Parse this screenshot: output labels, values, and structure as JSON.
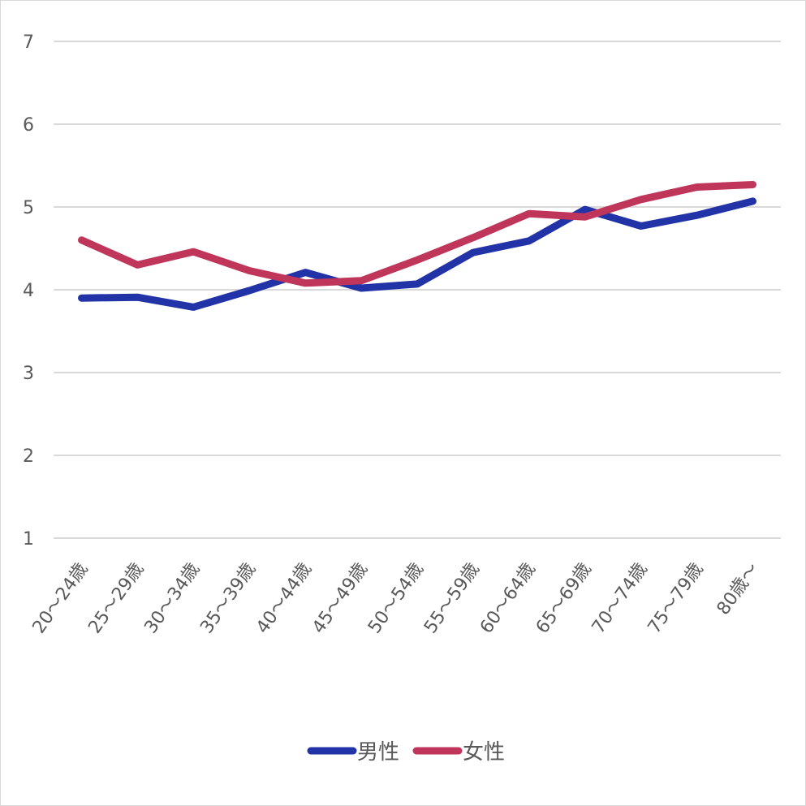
{
  "chart_data": {
    "type": "line",
    "title": "",
    "xlabel": "",
    "ylabel": "",
    "categories": [
      "20～24歳",
      "25～29歳",
      "30～34歳",
      "35～39歳",
      "40～44歳",
      "45～49歳",
      "50～54歳",
      "55～59歳",
      "60～64歳",
      "65～69歳",
      "70～74歳",
      "75～79歳",
      "80歳～"
    ],
    "ylim": [
      1,
      7
    ],
    "yticks": [
      1,
      2,
      3,
      4,
      5,
      6,
      7
    ],
    "grid": true,
    "legend_position": "bottom",
    "series": [
      {
        "name": "男性",
        "color": "#2233a8",
        "values": [
          3.9,
          3.91,
          3.79,
          3.99,
          4.21,
          4.02,
          4.07,
          4.45,
          4.59,
          4.97,
          4.77,
          4.9,
          5.07
        ]
      },
      {
        "name": "女性",
        "color": "#c0365b",
        "values": [
          4.6,
          4.3,
          4.46,
          4.23,
          4.08,
          4.11,
          4.36,
          4.63,
          4.92,
          4.88,
          5.09,
          5.24,
          5.27
        ]
      }
    ]
  }
}
